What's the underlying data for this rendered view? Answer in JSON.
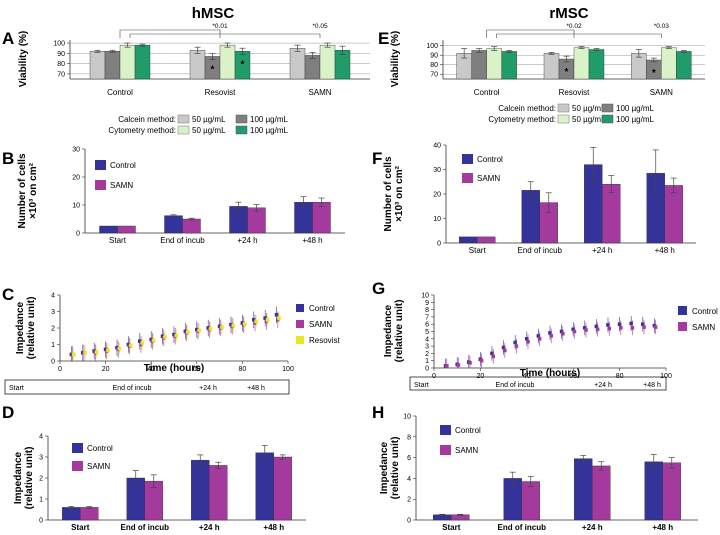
{
  "titles": {
    "left": "hMSC",
    "right": "rMSC"
  },
  "colors": {
    "calcein50": "#c9c9c9",
    "calcein100": "#7f7f7f",
    "cyto50": "#d9f2c8",
    "cyto100": "#1f9c6a",
    "control": "#33339a",
    "samn": "#a53a9e",
    "resovist": "#e8e822"
  },
  "legend": {
    "calcein": "Calcein method:",
    "cytometry": "Cytometry method:",
    "c50": "50 µg/mL",
    "c100": "100 µg/mL",
    "control": "Control",
    "samn": "SAMN",
    "resovist": "Resovist"
  },
  "timeline": {
    "left": [
      "Start",
      "End of incub",
      "+24 h",
      "+48 h"
    ],
    "right": [
      "Start",
      "End of incub",
      "+24 h",
      "+48 h"
    ]
  },
  "chart_data": [
    {
      "id": "A",
      "type": "bar",
      "ylabel": "Viability (%)",
      "yticks": [
        70,
        80,
        90,
        100
      ],
      "ylim": [
        65,
        103
      ],
      "categories": [
        "Control",
        "Resovist",
        "SAMN"
      ],
      "series": [
        {
          "name": "Calcein 50 µg/mL",
          "color_key": "calcein50",
          "values": [
            92,
            93,
            95
          ],
          "err": [
            1,
            3,
            3
          ]
        },
        {
          "name": "Calcein 100 µg/mL",
          "color_key": "calcein100",
          "values": [
            92,
            87,
            88
          ],
          "err": [
            1,
            3,
            3
          ]
        },
        {
          "name": "Cytometry 50 µg/mL",
          "color_key": "cyto50",
          "values": [
            98,
            98,
            98
          ],
          "err": [
            2,
            2,
            2
          ]
        },
        {
          "name": "Cytometry 100 µg/mL",
          "color_key": "cyto100",
          "values": [
            98,
            92,
            93
          ],
          "err": [
            1,
            3,
            4
          ]
        }
      ],
      "stars": [
        [
          1,
          1
        ],
        [
          1,
          3
        ]
      ],
      "significance": [
        "*0.01",
        "*0.05"
      ]
    },
    {
      "id": "E",
      "type": "bar",
      "ylabel": "Viability (%)",
      "yticks": [
        70,
        80,
        90,
        100
      ],
      "ylim": [
        65,
        106
      ],
      "categories": [
        "Control",
        "Resovist",
        "SAMN"
      ],
      "series": [
        {
          "name": "Calcein 50 µg/mL",
          "color_key": "calcein50",
          "values": [
            92,
            92,
            92
          ],
          "err": [
            5,
            1,
            4
          ]
        },
        {
          "name": "Calcein 100 µg/mL",
          "color_key": "calcein100",
          "values": [
            95,
            86,
            85
          ],
          "err": [
            2,
            3,
            2
          ]
        },
        {
          "name": "Cytometry 50 µg/mL",
          "color_key": "cyto50",
          "values": [
            97,
            98,
            98
          ],
          "err": [
            2,
            1,
            1
          ]
        },
        {
          "name": "Cytometry 100 µg/mL",
          "color_key": "cyto100",
          "values": [
            94,
            96,
            94
          ],
          "err": [
            1,
            1,
            1
          ]
        }
      ],
      "stars": [
        [
          1,
          1
        ],
        [
          2,
          1
        ]
      ],
      "significance": [
        "*0.02",
        "*0.03"
      ]
    },
    {
      "id": "B",
      "type": "bar",
      "ylabel": "Number of cells ×10³ on cm²",
      "yticks": [
        0,
        10,
        20,
        30
      ],
      "ylim": [
        0,
        30
      ],
      "categories": [
        "Start",
        "End of incub",
        "+24 h",
        "+48 h"
      ],
      "series": [
        {
          "name": "Control",
          "color_key": "control",
          "values": [
            2.5,
            6.2,
            9.5,
            11
          ],
          "err": [
            0,
            0.3,
            1.5,
            2
          ]
        },
        {
          "name": "SAMN",
          "color_key": "samn",
          "values": [
            2.5,
            5,
            9,
            11
          ],
          "err": [
            0,
            0.3,
            1.2,
            1.5
          ]
        }
      ]
    },
    {
      "id": "F",
      "type": "bar",
      "ylabel": "Number of cells ×10³ on cm²",
      "yticks": [
        0,
        10,
        20,
        30,
        40
      ],
      "ylim": [
        0,
        40
      ],
      "categories": [
        "Start",
        "End of incub",
        "+24 h",
        "+48 h"
      ],
      "series": [
        {
          "name": "Control",
          "color_key": "control",
          "values": [
            2.5,
            21.5,
            32,
            28.5
          ],
          "err": [
            0,
            3.5,
            7,
            9.5
          ]
        },
        {
          "name": "SAMN",
          "color_key": "samn",
          "values": [
            2.5,
            16.5,
            24,
            23.5
          ],
          "err": [
            0,
            4,
            3.5,
            3
          ]
        }
      ]
    },
    {
      "id": "C",
      "type": "scatter",
      "ylabel": "Impedance (relative unit)",
      "xlabel": "Time (hours)",
      "xlim": [
        0,
        100
      ],
      "ylim": [
        0,
        4
      ],
      "xticks": [
        0,
        20,
        40,
        60,
        80,
        100
      ],
      "yticks": [
        0,
        1,
        2,
        3,
        4
      ],
      "x": [
        5,
        10,
        15,
        20,
        25,
        30,
        35,
        40,
        45,
        50,
        55,
        60,
        65,
        70,
        75,
        80,
        85,
        90,
        95
      ],
      "series": [
        {
          "name": "Control",
          "color_key": "control",
          "values": [
            0.4,
            0.5,
            0.6,
            0.7,
            0.8,
            1.0,
            1.2,
            1.3,
            1.5,
            1.6,
            1.8,
            1.9,
            2.0,
            2.1,
            2.2,
            2.3,
            2.5,
            2.6,
            2.8
          ],
          "err": 0.5
        },
        {
          "name": "SAMN",
          "color_key": "samn",
          "values": [
            0.4,
            0.5,
            0.5,
            0.6,
            0.7,
            0.9,
            1.0,
            1.2,
            1.4,
            1.5,
            1.7,
            1.8,
            1.9,
            2.0,
            2.1,
            2.2,
            2.3,
            2.4,
            2.5
          ],
          "err": 0.5
        },
        {
          "name": "Resovist",
          "color_key": "resovist",
          "values": [
            0.4,
            0.5,
            0.55,
            0.65,
            0.75,
            0.95,
            1.1,
            1.25,
            1.45,
            1.55,
            1.75,
            1.85,
            1.95,
            2.05,
            2.15,
            2.25,
            2.4,
            2.5,
            2.6
          ],
          "err": 0.4
        }
      ]
    },
    {
      "id": "G",
      "type": "scatter",
      "ylabel": "Impedance (relative unit)",
      "xlabel": "Time (hours)",
      "xlim": [
        0,
        100
      ],
      "ylim": [
        0,
        10
      ],
      "xticks": [
        0,
        20,
        40,
        60,
        80,
        100
      ],
      "yticks": [
        0,
        1,
        2,
        3,
        4,
        5,
        6,
        7,
        8,
        9,
        10
      ],
      "x": [
        5,
        10,
        15,
        20,
        25,
        30,
        35,
        40,
        45,
        50,
        55,
        60,
        65,
        70,
        75,
        80,
        85,
        90,
        95
      ],
      "series": [
        {
          "name": "Control",
          "color_key": "control",
          "values": [
            0.3,
            0.5,
            0.8,
            1.2,
            2.0,
            2.8,
            3.5,
            4.0,
            4.4,
            4.8,
            5.0,
            5.3,
            5.5,
            5.7,
            5.9,
            6.0,
            6.1,
            6.0,
            5.8
          ],
          "err": 1.0
        },
        {
          "name": "SAMN",
          "color_key": "samn",
          "values": [
            0.3,
            0.4,
            0.7,
            1.0,
            1.6,
            2.4,
            3.0,
            3.6,
            4.0,
            4.4,
            4.7,
            5.0,
            5.2,
            5.3,
            5.4,
            5.5,
            5.5,
            5.6,
            5.6
          ],
          "err": 1.0
        }
      ]
    },
    {
      "id": "D",
      "type": "bar",
      "ylabel": "Impedance (relative unit)",
      "yticks": [
        0,
        1,
        2,
        3,
        4
      ],
      "ylim": [
        0,
        4
      ],
      "categories": [
        "Start",
        "End of incub",
        "+24 h",
        "+48 h"
      ],
      "series": [
        {
          "name": "Control",
          "color_key": "control",
          "values": [
            0.6,
            2.0,
            2.85,
            3.2
          ],
          "err": [
            0.05,
            0.35,
            0.25,
            0.35
          ]
        },
        {
          "name": "SAMN",
          "color_key": "samn",
          "values": [
            0.6,
            1.85,
            2.6,
            3.0
          ],
          "err": [
            0.05,
            0.3,
            0.15,
            0.1
          ]
        }
      ]
    },
    {
      "id": "H",
      "type": "bar",
      "ylabel": "Impedance (relative unit)",
      "yticks": [
        0,
        2,
        4,
        6,
        8,
        10
      ],
      "ylim": [
        0,
        10
      ],
      "categories": [
        "Start",
        "End of incub",
        "+24 h",
        "+48 h"
      ],
      "series": [
        {
          "name": "Control",
          "color_key": "control",
          "values": [
            0.5,
            4.0,
            5.9,
            5.6
          ],
          "err": [
            0.05,
            0.6,
            0.3,
            0.7
          ]
        },
        {
          "name": "SAMN",
          "color_key": "samn",
          "values": [
            0.5,
            3.7,
            5.2,
            5.5
          ],
          "err": [
            0.05,
            0.5,
            0.4,
            0.5
          ]
        }
      ]
    }
  ]
}
